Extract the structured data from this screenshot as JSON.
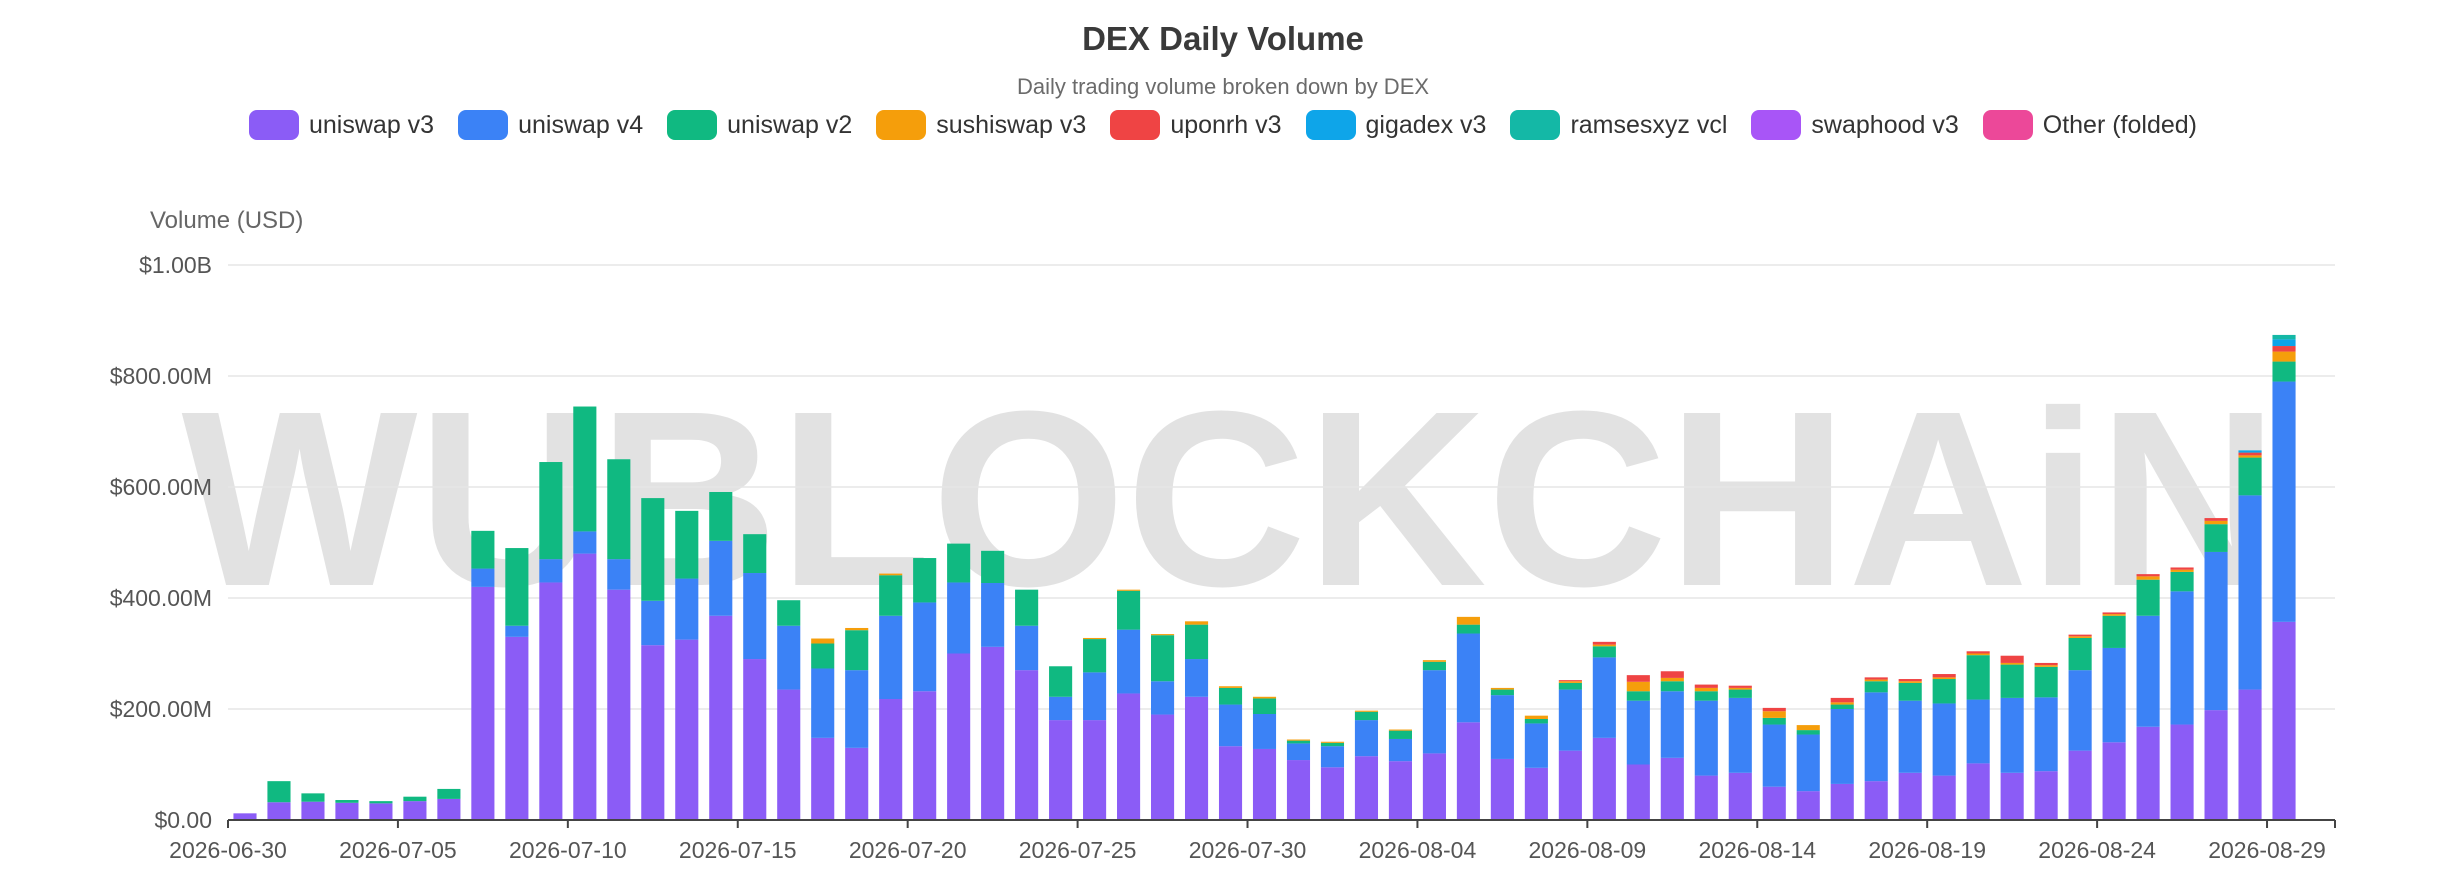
{
  "chart_data": {
    "type": "bar",
    "stacked": true,
    "title": "DEX Daily Volume",
    "subtitle": "Daily trading volume broken down by DEX",
    "ylabel": "Volume (USD)",
    "xlabel": "",
    "ylim": [
      0,
      1000000000
    ],
    "y_ticks": [
      "$0.00",
      "$200.00M",
      "$400.00M",
      "$600.00M",
      "$800.00M",
      "$1.00B"
    ],
    "x_tick_labels": [
      "2026-06-30",
      "2026-07-05",
      "2026-07-10",
      "2026-07-15",
      "2026-07-20",
      "2026-07-25",
      "2026-07-30",
      "2026-08-04",
      "2026-08-09",
      "2026-08-14",
      "2026-08-19",
      "2026-08-24",
      "2026-08-29"
    ],
    "grid": true,
    "legend_position": "top",
    "watermark": "WUBLOCKCHAiN",
    "categories": [
      "2026-06-30",
      "2026-07-01",
      "2026-07-02",
      "2026-07-03",
      "2026-07-04",
      "2026-07-05",
      "2026-07-06",
      "2026-07-07",
      "2026-07-08",
      "2026-07-09",
      "2026-07-10",
      "2026-07-11",
      "2026-07-12",
      "2026-07-13",
      "2026-07-14",
      "2026-07-15",
      "2026-07-16",
      "2026-07-17",
      "2026-07-18",
      "2026-07-19",
      "2026-07-20",
      "2026-07-21",
      "2026-07-22",
      "2026-07-23",
      "2026-07-24",
      "2026-07-25",
      "2026-07-26",
      "2026-07-27",
      "2026-07-28",
      "2026-07-29",
      "2026-07-30",
      "2026-07-31",
      "2026-08-01",
      "2026-08-02",
      "2026-08-03",
      "2026-08-04",
      "2026-08-05",
      "2026-08-06",
      "2026-08-07",
      "2026-08-08",
      "2026-08-09",
      "2026-08-10",
      "2026-08-11",
      "2026-08-12",
      "2026-08-13",
      "2026-08-14",
      "2026-08-15",
      "2026-08-16",
      "2026-08-17",
      "2026-08-18",
      "2026-08-19",
      "2026-08-20",
      "2026-08-21",
      "2026-08-22",
      "2026-08-23",
      "2026-08-24",
      "2026-08-25",
      "2026-08-26",
      "2026-08-27",
      "2026-08-28",
      "2026-08-29",
      "2026-08-30"
    ],
    "series": [
      {
        "name": "uniswap v3",
        "color": "#8b5cf6",
        "values": [
          12,
          32,
          33,
          31,
          30,
          34,
          38,
          420,
          330,
          428,
          480,
          415,
          315,
          325,
          368,
          290,
          235,
          148,
          130,
          218,
          232,
          300,
          312,
          270,
          180,
          180,
          228,
          190,
          222,
          133,
          128,
          108,
          95,
          115,
          106,
          120,
          176,
          110,
          94,
          125,
          148,
          100,
          112,
          80,
          85,
          60,
          52,
          65,
          70,
          85,
          80,
          102,
          85,
          88,
          125,
          140,
          168,
          172,
          198,
          235,
          357,
          0
        ]
      },
      {
        "name": "uniswap v4",
        "color": "#3b82f6",
        "values": [
          0,
          0,
          0,
          0,
          0,
          0,
          0,
          33,
          20,
          42,
          40,
          55,
          80,
          110,
          135,
          155,
          115,
          125,
          140,
          150,
          160,
          128,
          115,
          80,
          42,
          86,
          115,
          60,
          68,
          75,
          63,
          30,
          38,
          65,
          40,
          150,
          160,
          115,
          80,
          110,
          145,
          115,
          120,
          135,
          135,
          112,
          102,
          135,
          160,
          130,
          130,
          115,
          135,
          133,
          145,
          170,
          200,
          240,
          285,
          350,
          433,
          0
        ]
      },
      {
        "name": "uniswap v2",
        "color": "#10b981",
        "values": [
          0,
          38,
          15,
          5,
          4,
          8,
          18,
          68,
          140,
          175,
          225,
          180,
          185,
          122,
          88,
          70,
          46,
          45,
          72,
          73,
          80,
          70,
          58,
          65,
          55,
          60,
          70,
          83,
          62,
          30,
          28,
          5,
          6,
          15,
          15,
          15,
          16,
          10,
          8,
          12,
          20,
          17,
          18,
          17,
          15,
          12,
          8,
          8,
          20,
          32,
          44,
          80,
          60,
          55,
          58,
          58,
          65,
          35,
          50,
          68,
          36,
          0
        ]
      },
      {
        "name": "sushiswap v3",
        "color": "#f59e0b",
        "values": [
          0,
          0,
          0,
          0,
          0,
          0,
          0,
          0,
          0,
          0,
          0,
          0,
          0,
          0,
          0,
          0,
          0,
          9,
          4,
          3,
          0,
          0,
          0,
          0,
          0,
          2,
          2,
          2,
          6,
          3,
          3,
          2,
          2,
          2,
          2,
          3,
          14,
          3,
          6,
          3,
          3,
          17,
          6,
          6,
          3,
          12,
          9,
          4,
          3,
          3,
          3,
          3,
          3,
          3,
          3,
          3,
          6,
          4,
          6,
          4,
          18,
          0
        ]
      },
      {
        "name": "uponrh v3",
        "color": "#ef4444",
        "values": [
          0,
          0,
          0,
          0,
          0,
          0,
          0,
          0,
          0,
          0,
          0,
          0,
          0,
          0,
          0,
          0,
          0,
          0,
          0,
          0,
          0,
          0,
          0,
          0,
          0,
          0,
          0,
          0,
          0,
          0,
          0,
          0,
          0,
          0,
          0,
          0,
          0,
          0,
          0,
          2,
          5,
          12,
          12,
          6,
          4,
          6,
          0,
          8,
          4,
          4,
          6,
          4,
          13,
          4,
          3,
          3,
          4,
          4,
          5,
          5,
          10,
          0
        ]
      },
      {
        "name": "gigadex v3",
        "color": "#0ea5e9",
        "values": [
          0,
          0,
          0,
          0,
          0,
          0,
          0,
          0,
          0,
          0,
          0,
          0,
          0,
          0,
          0,
          0,
          0,
          0,
          0,
          0,
          0,
          0,
          0,
          0,
          0,
          0,
          0,
          0,
          0,
          0,
          0,
          0,
          0,
          0,
          0,
          0,
          0,
          0,
          0,
          0,
          0,
          0,
          0,
          0,
          0,
          0,
          0,
          0,
          0,
          0,
          0,
          0,
          0,
          0,
          0,
          0,
          0,
          0,
          0,
          4,
          12,
          0
        ]
      },
      {
        "name": "ramsesxyz vcl",
        "color": "#14b8a6",
        "values": [
          0,
          0,
          0,
          0,
          0,
          0,
          0,
          0,
          0,
          0,
          0,
          0,
          0,
          0,
          0,
          0,
          0,
          0,
          0,
          0,
          0,
          0,
          0,
          0,
          0,
          0,
          0,
          0,
          0,
          0,
          0,
          0,
          0,
          0,
          0,
          0,
          0,
          0,
          0,
          0,
          0,
          0,
          0,
          0,
          0,
          0,
          0,
          0,
          0,
          0,
          0,
          0,
          0,
          0,
          0,
          0,
          0,
          0,
          0,
          0,
          8,
          0
        ]
      },
      {
        "name": "swaphood v3",
        "color": "#a855f7",
        "values": [
          0,
          0,
          0,
          0,
          0,
          0,
          0,
          0,
          0,
          0,
          0,
          0,
          0,
          0,
          0,
          0,
          0,
          0,
          0,
          0,
          0,
          0,
          0,
          0,
          0,
          0,
          0,
          0,
          0,
          0,
          0,
          0,
          0,
          0,
          0,
          0,
          0,
          0,
          0,
          0,
          0,
          0,
          0,
          0,
          0,
          0,
          0,
          0,
          0,
          0,
          0,
          0,
          0,
          0,
          0,
          0,
          0,
          0,
          0,
          0,
          0,
          0
        ]
      },
      {
        "name": "Other (folded)",
        "color": "#ec4899",
        "values": [
          0,
          0,
          0,
          0,
          0,
          0,
          0,
          0,
          0,
          0,
          0,
          0,
          0,
          0,
          0,
          0,
          0,
          0,
          0,
          0,
          0,
          0,
          0,
          0,
          0,
          0,
          0,
          0,
          0,
          0,
          0,
          0,
          0,
          0,
          0,
          0,
          0,
          0,
          0,
          0,
          0,
          0,
          0,
          0,
          0,
          0,
          0,
          0,
          0,
          0,
          0,
          0,
          0,
          0,
          0,
          0,
          0,
          0,
          0,
          0,
          0,
          0
        ]
      }
    ],
    "value_unit_note": "values in millions USD"
  }
}
